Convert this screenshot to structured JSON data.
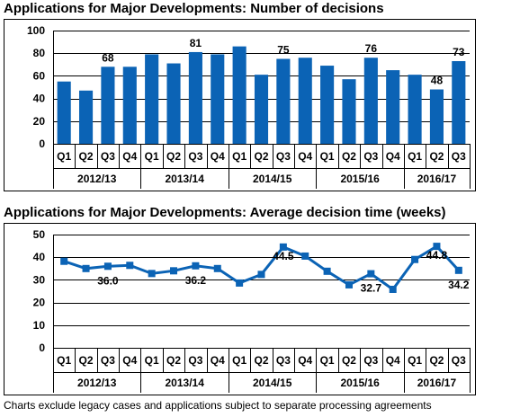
{
  "chart_data": [
    {
      "type": "bar",
      "title": "Applications for Major Developments: Number of decisions",
      "quarters": [
        "Q1",
        "Q2",
        "Q3",
        "Q4",
        "Q1",
        "Q2",
        "Q3",
        "Q4",
        "Q1",
        "Q2",
        "Q3",
        "Q4",
        "Q1",
        "Q2",
        "Q3",
        "Q4",
        "Q1",
        "Q2",
        "Q3"
      ],
      "years": [
        {
          "label": "2012/13",
          "span": 4
        },
        {
          "label": "2013/14",
          "span": 4
        },
        {
          "label": "2014/15",
          "span": 4
        },
        {
          "label": "2015/16",
          "span": 4
        },
        {
          "label": "2016/17",
          "span": 3
        }
      ],
      "values": [
        55,
        47,
        68,
        68,
        79,
        71,
        81,
        79,
        86,
        61,
        75,
        76,
        69,
        57,
        76,
        65,
        61,
        48,
        73
      ],
      "data_labels": {
        "2": "68",
        "6": "81",
        "10": "75",
        "14": "76",
        "17": "48",
        "18": "73"
      },
      "ylim": [
        0,
        100
      ],
      "yticks": [
        0,
        20,
        40,
        60,
        80,
        100
      ],
      "grid": true,
      "color": "#0b63b5"
    },
    {
      "type": "line",
      "title": "Applications for Major Developments: Average decision time (weeks)",
      "quarters": [
        "Q1",
        "Q2",
        "Q3",
        "Q4",
        "Q1",
        "Q2",
        "Q3",
        "Q4",
        "Q1",
        "Q2",
        "Q3",
        "Q4",
        "Q1",
        "Q2",
        "Q3",
        "Q4",
        "Q1",
        "Q2",
        "Q3"
      ],
      "years": [
        {
          "label": "2012/13",
          "span": 4
        },
        {
          "label": "2013/14",
          "span": 4
        },
        {
          "label": "2014/15",
          "span": 4
        },
        {
          "label": "2015/16",
          "span": 4
        },
        {
          "label": "2016/17",
          "span": 3
        }
      ],
      "values": [
        38.2,
        35.0,
        36.0,
        36.4,
        32.8,
        34.0,
        36.2,
        35.0,
        28.6,
        32.4,
        44.5,
        40.5,
        33.8,
        27.8,
        32.7,
        25.8,
        39.0,
        44.8,
        34.2
      ],
      "data_labels": {
        "2": "36.0",
        "6": "36.2",
        "10": "44.5",
        "14": "32.7",
        "17": "44.8",
        "18": "34.2"
      },
      "ylim": [
        0,
        50
      ],
      "yticks": [
        0,
        10,
        20,
        30,
        40,
        50
      ],
      "grid": true,
      "color": "#0b63b5"
    }
  ],
  "footnote": "Charts exclude legacy cases and applications subject to separate processing agreements"
}
